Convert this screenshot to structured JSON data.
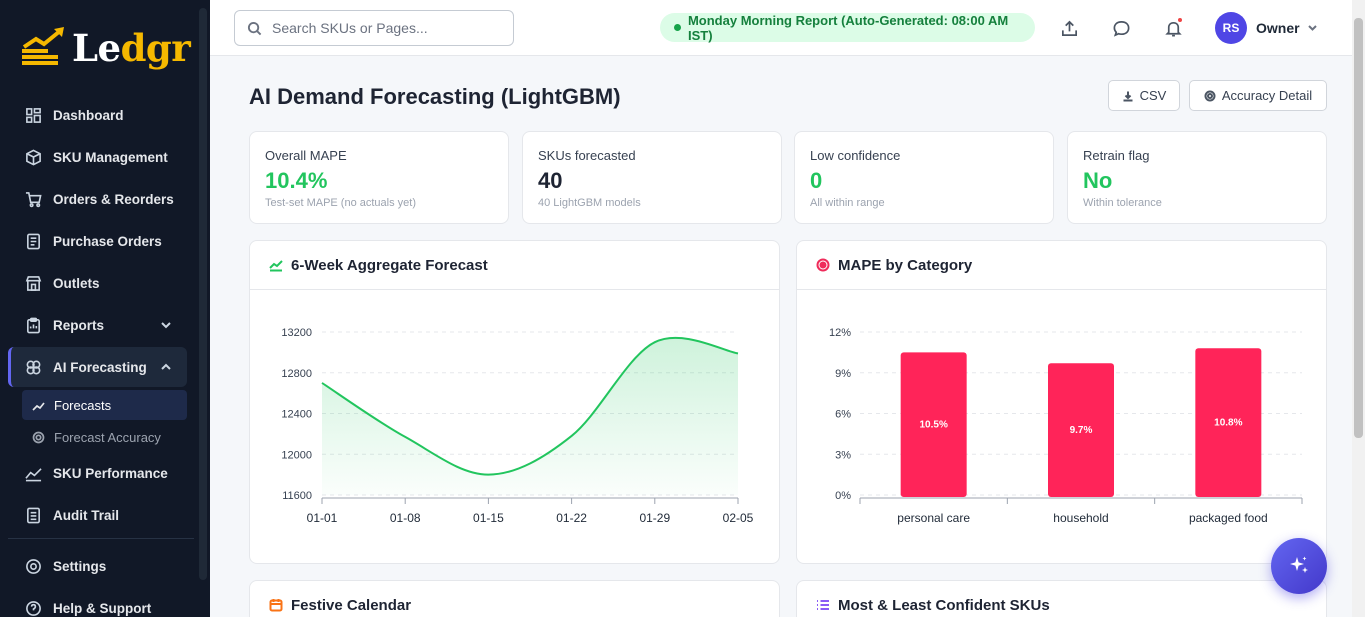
{
  "brand": {
    "logo_prefix": "Le",
    "logo_highlight": "dgr"
  },
  "sidebar": {
    "items": [
      {
        "label": "Dashboard"
      },
      {
        "label": "SKU Management"
      },
      {
        "label": "Orders & Reorders"
      },
      {
        "label": "Purchase Orders"
      },
      {
        "label": "Outlets"
      },
      {
        "label": "Reports"
      },
      {
        "label": "AI Forecasting"
      },
      {
        "label": "SKU Performance"
      },
      {
        "label": "Audit Trail"
      },
      {
        "label": "Settings"
      },
      {
        "label": "Help & Support"
      }
    ],
    "subitems": [
      {
        "label": "Forecasts"
      },
      {
        "label": "Forecast Accuracy"
      }
    ]
  },
  "topbar": {
    "search_placeholder": "Search SKUs or Pages...",
    "report_label": "Monday Morning Report (Auto-Generated: 08:00 AM IST)",
    "avatar_initials": "RS",
    "user_name": "Owner"
  },
  "page": {
    "title": "AI Demand Forecasting (LightGBM)",
    "csv_label": "CSV",
    "accuracy_label": "Accuracy Detail"
  },
  "kpis": [
    {
      "label": "Overall MAPE",
      "value": "10.4%",
      "sub": "Test-set MAPE (no actuals yet)",
      "color": "#22c55e"
    },
    {
      "label": "SKUs forecasted",
      "value": "40",
      "sub": "40 LightGBM models",
      "color": "#1e2433"
    },
    {
      "label": "Low confidence",
      "value": "0",
      "sub": "All within range",
      "color": "#22c55e"
    },
    {
      "label": "Retrain flag",
      "value": "No",
      "sub": "Within tolerance",
      "color": "#22c55e"
    }
  ],
  "cards": {
    "forecast_title": "6-Week Aggregate Forecast",
    "mape_title": "MAPE by Category",
    "festive_title": "Festive Calendar",
    "confident_title": "Most & Least Confident SKUs"
  },
  "chart_data": [
    {
      "type": "area",
      "title": "6-Week Aggregate Forecast",
      "categories": [
        "01-01",
        "01-08",
        "01-15",
        "01-22",
        "01-29",
        "02-05"
      ],
      "values": [
        12700,
        12170,
        11800,
        12180,
        13100,
        12990
      ],
      "yticks": [
        "13200",
        "12800",
        "12400",
        "12000",
        "11600"
      ],
      "ylim": [
        11600,
        13200
      ],
      "color": "#22c55e",
      "grid": true
    },
    {
      "type": "bar",
      "title": "MAPE by Category",
      "categories": [
        "personal care",
        "household",
        "packaged food"
      ],
      "values": [
        10.5,
        9.7,
        10.8
      ],
      "data_labels": [
        "10.5%",
        "9.7%",
        "10.8%"
      ],
      "yticks": [
        "12%",
        "9%",
        "6%",
        "3%",
        "0%"
      ],
      "ylim": [
        0,
        12
      ],
      "color": "#ff2459",
      "grid": true
    }
  ]
}
